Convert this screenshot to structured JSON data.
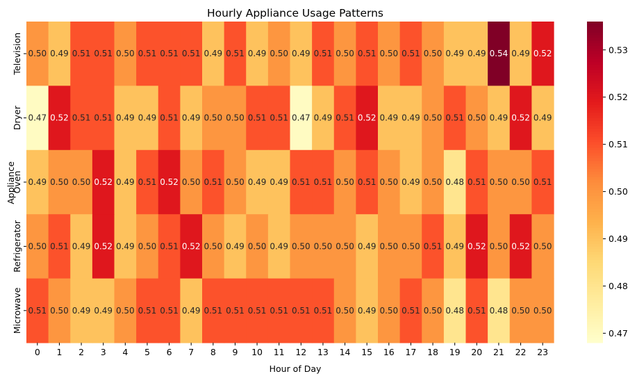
{
  "chart_data": {
    "type": "heatmap",
    "title": "Hourly Appliance Usage Patterns",
    "xlabel": "Hour of Day",
    "ylabel": "Appliance",
    "x_categories": [
      "0",
      "1",
      "2",
      "3",
      "4",
      "5",
      "6",
      "7",
      "8",
      "9",
      "10",
      "11",
      "12",
      "13",
      "14",
      "15",
      "16",
      "17",
      "18",
      "19",
      "20",
      "21",
      "22",
      "23"
    ],
    "y_categories": [
      "Television",
      "Dryer",
      "Oven",
      "Refrigerator",
      "Microwave"
    ],
    "values": [
      [
        0.5,
        0.49,
        0.51,
        0.51,
        0.5,
        0.51,
        0.51,
        0.51,
        0.49,
        0.51,
        0.49,
        0.5,
        0.49,
        0.51,
        0.5,
        0.51,
        0.5,
        0.51,
        0.5,
        0.49,
        0.49,
        0.54,
        0.49,
        0.52
      ],
      [
        0.47,
        0.52,
        0.51,
        0.51,
        0.49,
        0.49,
        0.51,
        0.49,
        0.5,
        0.5,
        0.51,
        0.51,
        0.47,
        0.49,
        0.51,
        0.52,
        0.49,
        0.49,
        0.5,
        0.51,
        0.5,
        0.49,
        0.52,
        0.49
      ],
      [
        0.49,
        0.5,
        0.5,
        0.52,
        0.49,
        0.51,
        0.52,
        0.5,
        0.51,
        0.5,
        0.49,
        0.49,
        0.51,
        0.51,
        0.5,
        0.51,
        0.5,
        0.49,
        0.5,
        0.48,
        0.51,
        0.5,
        0.5,
        0.51
      ],
      [
        0.5,
        0.51,
        0.49,
        0.52,
        0.49,
        0.5,
        0.51,
        0.52,
        0.5,
        0.49,
        0.5,
        0.49,
        0.5,
        0.5,
        0.5,
        0.49,
        0.5,
        0.5,
        0.51,
        0.49,
        0.52,
        0.5,
        0.52,
        0.5
      ],
      [
        0.51,
        0.5,
        0.49,
        0.49,
        0.5,
        0.51,
        0.51,
        0.49,
        0.51,
        0.51,
        0.51,
        0.51,
        0.51,
        0.51,
        0.5,
        0.49,
        0.5,
        0.51,
        0.5,
        0.48,
        0.51,
        0.48,
        0.5,
        0.5
      ]
    ],
    "colormap": "YlOrRd",
    "colorbar": {
      "vmin": 0.468,
      "vmax": 0.536,
      "ticks": [
        0.47,
        0.48,
        0.49,
        0.5,
        0.51,
        0.52,
        0.53
      ],
      "tick_labels": [
        "0.47",
        "0.48",
        "0.49",
        "0.50",
        "0.51",
        "0.52",
        "0.53"
      ]
    },
    "annotate": true
  }
}
